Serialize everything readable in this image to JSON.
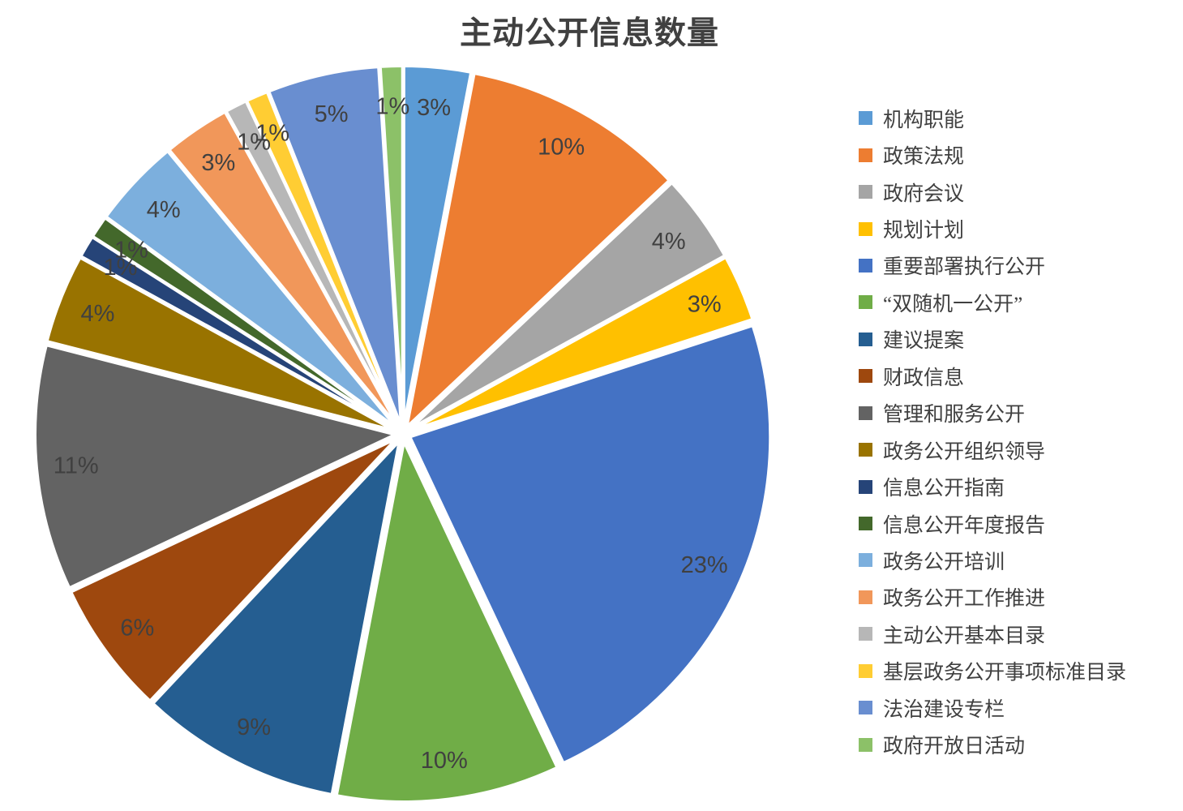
{
  "chart_data": {
    "type": "pie",
    "title": "主动公开信息数量",
    "legend_position": "right",
    "grid": false,
    "title_color": "#404040",
    "label_color": "#404040",
    "slice_border_color": "#FFFFFF",
    "background_color": "#FFFFFF",
    "slices": [
      {
        "name": "机构职能",
        "value": 3,
        "display": "3%",
        "color": "#5B9BD5"
      },
      {
        "name": "政策法规",
        "value": 10,
        "display": "10%",
        "color": "#ED7D31"
      },
      {
        "name": "政府会议",
        "value": 4,
        "display": "4%",
        "color": "#A5A5A5"
      },
      {
        "name": "规划计划",
        "value": 3,
        "display": "3%",
        "color": "#FFC000"
      },
      {
        "name": "重要部署执行公开",
        "value": 23,
        "display": "23%",
        "color": "#4472C4"
      },
      {
        "name": "“双随机一公开”",
        "value": 10,
        "display": "10%",
        "color": "#70AD47"
      },
      {
        "name": "建议提案",
        "value": 9,
        "display": "9%",
        "color": "#255E91"
      },
      {
        "name": "财政信息",
        "value": 6,
        "display": "6%",
        "color": "#9E480E"
      },
      {
        "name": "管理和服务公开",
        "value": 11,
        "display": "11%",
        "color": "#636363"
      },
      {
        "name": "政务公开组织领导",
        "value": 4,
        "display": "4%",
        "color": "#997300"
      },
      {
        "name": "信息公开指南",
        "value": 1,
        "display": "1%",
        "color": "#264478"
      },
      {
        "name": "信息公开年度报告",
        "value": 1,
        "display": "1%",
        "color": "#43682B"
      },
      {
        "name": "政务公开培训",
        "value": 4,
        "display": "4%",
        "color": "#7CAFDD"
      },
      {
        "name": "政务公开工作推进",
        "value": 3,
        "display": "3%",
        "color": "#F1975A"
      },
      {
        "name": "主动公开基本目录",
        "value": 1,
        "display": "1%",
        "color": "#B7B7B7"
      },
      {
        "name": "基层政务公开事项标准目录",
        "value": 1,
        "display": "1%",
        "color": "#FFCD33"
      },
      {
        "name": "法治建设专栏",
        "value": 5,
        "display": "5%",
        "color": "#698ED0"
      },
      {
        "name": "政府开放日活动",
        "value": 1,
        "display": "1%",
        "color": "#8CC168"
      }
    ]
  }
}
